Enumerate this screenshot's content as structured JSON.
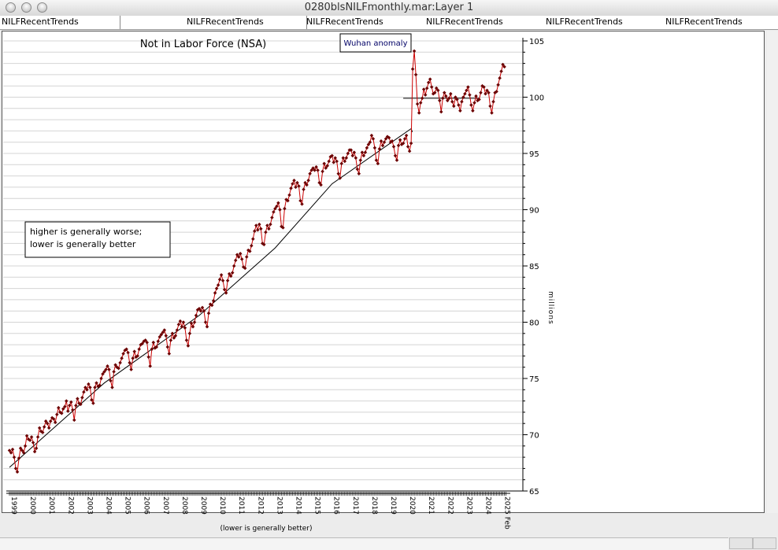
{
  "window": {
    "title": "0280blsNILFmonthly.mar:Layer 1"
  },
  "tabs": [
    "NILFRecentTrends",
    "NILFRecentTrends",
    "NILFRecentTrends",
    "NILFRecentTrends",
    "NILFRecentTrends",
    "NILFRecentTrends"
  ],
  "chart_data": {
    "type": "line",
    "title": "Not in Labor Force (NSA)",
    "ylabel": "millions",
    "xlabel": "(lower is generally better)",
    "ylim": [
      65,
      105
    ],
    "yticks": [
      65,
      70,
      75,
      80,
      85,
      90,
      95,
      100,
      105
    ],
    "xticks": [
      "1999",
      "2000",
      "2001",
      "2002",
      "2003",
      "2004",
      "2005",
      "2006",
      "2007",
      "2008",
      "2009",
      "2010",
      "2011",
      "2012",
      "2013",
      "2014",
      "2015",
      "2016",
      "2017",
      "2018",
      "2019",
      "2020",
      "2021",
      "2022",
      "2023",
      "2024",
      "2025 Feb"
    ],
    "annotations": {
      "note": [
        "higher is generally worse;",
        "lower is generally better"
      ],
      "event": "Wuhan anomaly"
    },
    "colors": {
      "series": "#cc0000",
      "marker": "#6b0000",
      "trend": "#000000"
    },
    "series": [
      {
        "values": [
          68.6,
          68.4,
          68.7,
          68.0,
          67.0,
          66.7,
          67.9,
          68.8,
          68.6,
          68.4,
          69.0,
          69.9,
          69.6,
          69.5,
          69.8,
          69.3,
          68.5,
          68.8,
          69.8,
          70.6,
          70.3,
          70.2,
          70.7,
          71.2,
          71.0,
          70.6,
          71.2,
          71.5,
          71.4,
          71.1,
          71.8,
          72.4,
          72.0,
          71.9,
          72.3,
          72.5,
          73.0,
          72.1,
          72.6,
          72.9,
          72.2,
          71.3,
          72.6,
          73.2,
          72.8,
          72.7,
          73.3,
          73.8,
          74.2,
          74.0,
          74.5,
          74.2,
          73.1,
          72.8,
          74.2,
          74.6,
          74.3,
          74.4,
          75.0,
          75.4,
          75.6,
          75.8,
          76.1,
          75.8,
          74.8,
          74.2,
          75.6,
          76.2,
          76.0,
          75.9,
          76.4,
          76.8,
          77.2,
          77.5,
          77.6,
          77.3,
          76.4,
          75.8,
          76.8,
          77.4,
          76.9,
          77.0,
          77.6,
          78.0,
          78.1,
          78.3,
          78.4,
          78.2,
          76.9,
          76.1,
          77.6,
          78.2,
          77.7,
          77.8,
          78.3,
          78.7,
          78.9,
          79.1,
          79.3,
          78.8,
          77.8,
          77.2,
          78.4,
          79.0,
          78.6,
          78.8,
          79.3,
          79.8,
          80.1,
          79.6,
          80.0,
          79.5,
          78.4,
          77.9,
          79.0,
          79.9,
          79.6,
          80.0,
          80.6,
          81.1,
          81.2,
          81.0,
          81.3,
          81.0,
          80.0,
          79.6,
          80.8,
          81.6,
          81.5,
          81.9,
          82.6,
          83.0,
          83.3,
          83.8,
          84.2,
          83.7,
          82.9,
          82.6,
          83.7,
          84.3,
          84.1,
          84.4,
          85.0,
          85.5,
          86.0,
          85.8,
          86.1,
          85.6,
          84.9,
          84.8,
          85.8,
          86.4,
          86.3,
          86.8,
          87.4,
          88.1,
          88.6,
          88.2,
          88.7,
          88.3,
          87.0,
          86.9,
          88.0,
          88.6,
          88.3,
          88.7,
          89.3,
          89.8,
          90.1,
          90.3,
          90.6,
          90.0,
          88.5,
          88.4,
          90.1,
          90.9,
          90.8,
          91.3,
          91.9,
          92.3,
          92.6,
          92.0,
          92.4,
          92.1,
          90.8,
          90.5,
          91.8,
          92.4,
          92.2,
          92.6,
          93.2,
          93.5,
          93.7,
          93.5,
          93.8,
          93.5,
          92.4,
          92.2,
          93.4,
          94.1,
          93.7,
          93.9,
          94.3,
          94.7,
          94.8,
          94.2,
          94.6,
          94.3,
          93.2,
          92.8,
          94.1,
          94.6,
          94.3,
          94.6,
          95.0,
          95.3,
          95.3,
          94.8,
          95.1,
          94.6,
          93.6,
          93.2,
          94.4,
          95.1,
          94.8,
          95.1,
          95.5,
          95.8,
          96.0,
          96.6,
          96.3,
          95.5,
          94.4,
          94.1,
          95.4,
          96.1,
          95.7,
          96.0,
          96.3,
          96.5,
          96.4,
          96.0,
          96.1,
          95.6,
          94.8,
          94.4,
          95.7,
          96.2,
          95.8,
          95.9,
          96.3,
          96.6,
          95.6,
          95.2,
          95.9,
          102.5,
          104.1,
          102.0,
          99.4,
          98.6,
          99.5,
          99.9,
          100.7,
          100.2,
          100.8,
          101.3,
          101.6,
          100.9,
          100.3,
          100.4,
          100.8,
          100.6,
          99.7,
          98.7,
          99.9,
          100.4,
          100.1,
          99.7,
          99.9,
          100.3,
          99.6,
          99.2,
          100.0,
          99.8,
          99.3,
          98.8,
          99.6,
          100.0,
          100.3,
          100.6,
          100.9,
          100.2,
          99.3,
          98.8,
          99.5,
          100.1,
          99.7,
          99.8,
          100.4,
          101.0,
          100.9,
          100.3,
          100.6,
          100.4,
          99.2,
          98.6,
          99.6,
          100.4,
          100.5,
          101.1,
          101.7,
          102.3,
          102.9,
          102.7
        ]
      }
    ]
  }
}
